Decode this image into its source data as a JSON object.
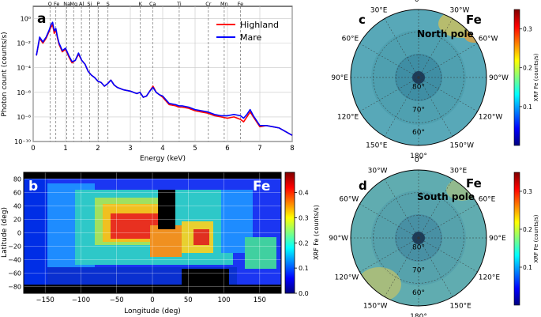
{
  "chart_data": [
    {
      "panel": "a",
      "type": "line",
      "xlabel": "Energy (keV)",
      "ylabel": "Photon count (counts/s)",
      "xlim": [
        0,
        8
      ],
      "ylim_log10": [
        -10,
        1
      ],
      "xticks": [
        "0",
        "1",
        "2",
        "3",
        "4",
        "5",
        "6",
        "7",
        "8"
      ],
      "yticks": [
        "10⁻¹⁰",
        "10⁻⁸",
        "10⁻⁶",
        "10⁻⁴",
        "10⁻²",
        "10⁰"
      ],
      "ytick_values_log10": [
        -10,
        -8,
        -6,
        -4,
        -2,
        0
      ],
      "grid": true,
      "legend_position": "top-right",
      "element_lines": [
        {
          "label": "O",
          "x": 0.52
        },
        {
          "label": "Fe",
          "x": 0.7
        },
        {
          "label": "Na",
          "x": 1.04
        },
        {
          "label": "Mg",
          "x": 1.25
        },
        {
          "label": "Al",
          "x": 1.49
        },
        {
          "label": "Si",
          "x": 1.74
        },
        {
          "label": "P",
          "x": 2.01
        },
        {
          "label": "S",
          "x": 2.31
        },
        {
          "label": "K",
          "x": 3.31
        },
        {
          "label": "Ca",
          "x": 3.69
        },
        {
          "label": "Ti",
          "x": 4.51
        },
        {
          "label": "Cr",
          "x": 5.41
        },
        {
          "label": "Mn",
          "x": 5.9
        },
        {
          "label": "Fe",
          "x": 6.4
        }
      ],
      "x": [
        0.1,
        0.2,
        0.3,
        0.4,
        0.5,
        0.55,
        0.6,
        0.65,
        0.7,
        0.75,
        0.8,
        0.9,
        1.0,
        1.1,
        1.2,
        1.3,
        1.4,
        1.5,
        1.6,
        1.7,
        1.8,
        1.9,
        2.0,
        2.1,
        2.2,
        2.3,
        2.4,
        2.5,
        2.6,
        2.8,
        3.0,
        3.2,
        3.3,
        3.4,
        3.5,
        3.6,
        3.7,
        3.8,
        3.9,
        4.0,
        4.2,
        4.4,
        4.5,
        4.6,
        4.8,
        5.0,
        5.2,
        5.4,
        5.6,
        5.8,
        6.0,
        6.2,
        6.4,
        6.5,
        6.6,
        6.7,
        6.8,
        7.0,
        7.2,
        7.4,
        7.6,
        7.8,
        8.0
      ],
      "series": [
        {
          "name": "Highland",
          "color": "#ff0000",
          "y_log10": [
            -3.0,
            -1.6,
            -2.0,
            -1.6,
            -1.0,
            -0.7,
            -0.5,
            -1.2,
            -0.9,
            -1.6,
            -2.1,
            -2.7,
            -2.5,
            -3.1,
            -3.6,
            -3.4,
            -2.9,
            -3.4,
            -3.7,
            -4.3,
            -4.6,
            -4.8,
            -5.1,
            -5.2,
            -5.5,
            -5.3,
            -5.0,
            -5.4,
            -5.6,
            -5.8,
            -5.9,
            -6.1,
            -6.0,
            -6.4,
            -6.3,
            -5.9,
            -5.5,
            -6.0,
            -6.2,
            -6.4,
            -7.0,
            -7.1,
            -7.2,
            -7.2,
            -7.3,
            -7.5,
            -7.6,
            -7.7,
            -7.9,
            -8.0,
            -8.1,
            -8.0,
            -8.2,
            -8.4,
            -8.0,
            -7.6,
            -8.0,
            -8.8,
            -8.7,
            -8.8,
            -8.9,
            -9.2,
            -9.5
          ]
        },
        {
          "name": "Mare",
          "color": "#0000ff",
          "y_log10": [
            -3.0,
            -1.5,
            -1.9,
            -1.5,
            -0.9,
            -0.5,
            -0.3,
            -1.0,
            -0.8,
            -1.5,
            -2.0,
            -2.6,
            -2.4,
            -3.0,
            -3.5,
            -3.4,
            -2.8,
            -3.4,
            -3.7,
            -4.3,
            -4.6,
            -4.8,
            -5.1,
            -5.2,
            -5.5,
            -5.3,
            -5.0,
            -5.4,
            -5.6,
            -5.8,
            -5.9,
            -6.1,
            -6.0,
            -6.4,
            -6.3,
            -5.9,
            -5.6,
            -6.0,
            -6.2,
            -6.3,
            -6.9,
            -7.0,
            -7.1,
            -7.1,
            -7.2,
            -7.4,
            -7.5,
            -7.6,
            -7.8,
            -7.9,
            -7.9,
            -7.8,
            -7.9,
            -8.1,
            -7.8,
            -7.4,
            -7.9,
            -8.7,
            -8.7,
            -8.8,
            -8.9,
            -9.2,
            -9.5
          ]
        }
      ]
    },
    {
      "panel": "b",
      "type": "heatmap",
      "xlabel": "Longitude (deg)",
      "ylabel": "Latitude (deg)",
      "xlim": [
        -180,
        180
      ],
      "ylim": [
        -90,
        90
      ],
      "xticks": [
        "−150",
        "−100",
        "−50",
        "0",
        "50",
        "100",
        "150"
      ],
      "xtick_values": [
        -150,
        -100,
        -50,
        0,
        50,
        100,
        150
      ],
      "yticks": [
        "80",
        "60",
        "40",
        "20",
        "0",
        "−20",
        "−40",
        "−60",
        "−80"
      ],
      "ytick_values": [
        80,
        60,
        40,
        20,
        0,
        -20,
        -40,
        -60,
        -80
      ],
      "element_label": "Fe",
      "colorbar": {
        "label": "XRF Fe (counts/s)",
        "range": [
          0.0,
          0.48
        ],
        "ticks": [
          "0.0",
          "0.1",
          "0.2",
          "0.3",
          "0.4"
        ],
        "tick_values": [
          0.0,
          0.1,
          0.2,
          0.3,
          0.4
        ]
      },
      "high_fe_regions_lon_lat": [
        {
          "lon_range": [
            -80,
            -20
          ],
          "lat_range": [
            -20,
            40
          ],
          "level": 0.38
        },
        {
          "lon_range": [
            -40,
            10
          ],
          "lat_range": [
            -45,
            0
          ],
          "level": 0.33
        },
        {
          "lon_range": [
            20,
            60
          ],
          "lat_range": [
            -30,
            10
          ],
          "level": 0.32
        }
      ]
    },
    {
      "panel": "c",
      "type": "heatmap",
      "projection": "polar",
      "title": "North pole",
      "element_label": "Fe",
      "longitude_labels": [
        "30°E",
        "0°",
        "30°W",
        "60°E",
        "60°W",
        "90°E",
        "90°W",
        "120°E",
        "120°W",
        "150°E",
        "180°",
        "150°W"
      ],
      "latitude_labels": [
        "80°",
        "70°",
        "60°"
      ],
      "colorbar": {
        "label": "XRF Fe (counts/s)",
        "range": [
          0.0,
          0.35
        ],
        "ticks": [
          "0.1",
          "0.2",
          "0.3"
        ],
        "tick_values": [
          0.1,
          0.2,
          0.3
        ]
      }
    },
    {
      "panel": "d",
      "type": "heatmap",
      "projection": "polar",
      "title": "South pole",
      "element_label": "Fe",
      "longitude_labels": [
        "30°W",
        "0°",
        "30°E",
        "60°W",
        "60°E",
        "90°W",
        "90°E",
        "120°W",
        "120°E",
        "150°W",
        "180°",
        "150°E"
      ],
      "latitude_labels": [
        "80°",
        "70°",
        "60°"
      ],
      "colorbar": {
        "label": "XRF Fe (counts/s)",
        "range": [
          0.0,
          0.35
        ],
        "ticks": [
          "0.1",
          "0.2",
          "0.3"
        ],
        "tick_values": [
          0.1,
          0.2,
          0.3
        ]
      }
    }
  ]
}
